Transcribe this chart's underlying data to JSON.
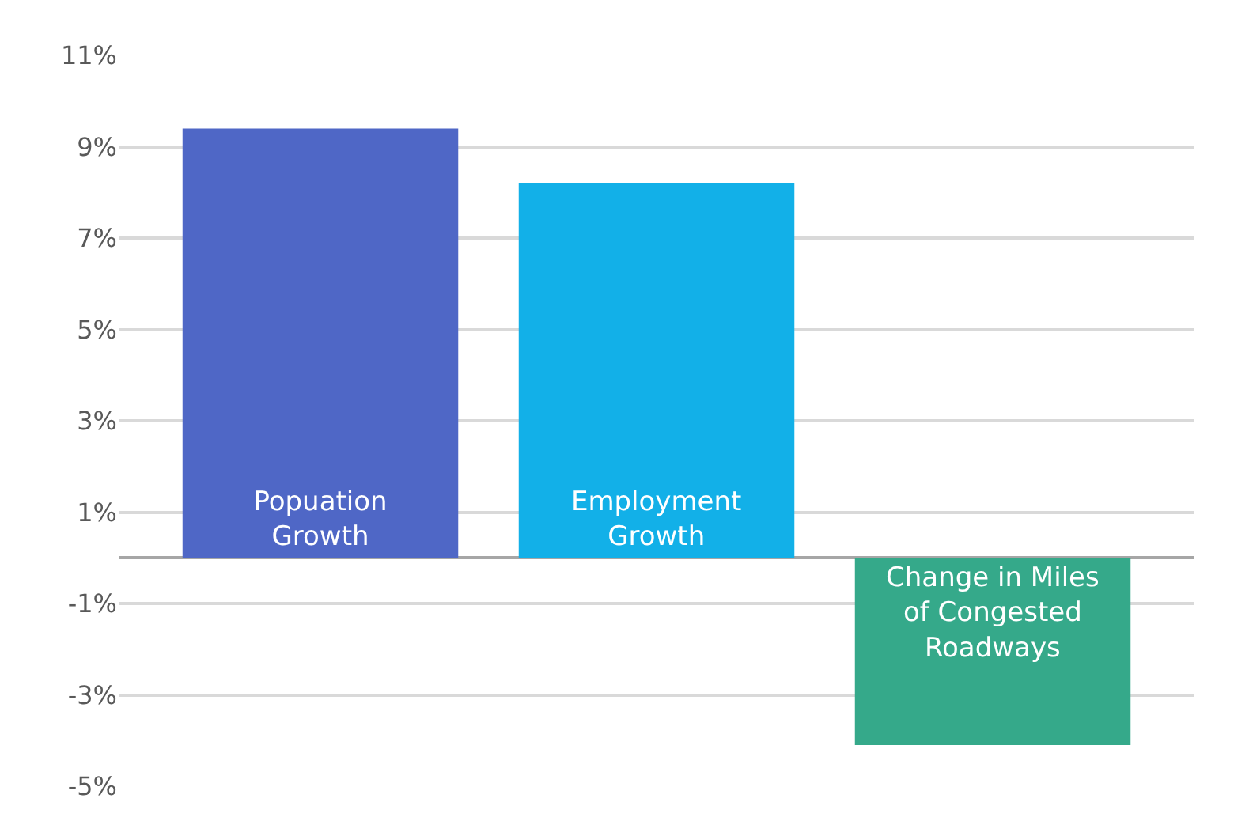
{
  "chart_data": {
    "type": "bar",
    "categories": [
      "Popuation Growth",
      "Employment Growth",
      "Change in Miles of Congested Roadways"
    ],
    "values": [
      9.4,
      8.2,
      -4.1
    ],
    "colors": [
      "#4f67c6",
      "#12b0e8",
      "#35a98a"
    ],
    "ylim": [
      -5,
      11
    ],
    "yticks": [
      {
        "value": -5,
        "label": "-5%"
      },
      {
        "value": -3,
        "label": "-3%"
      },
      {
        "value": -1,
        "label": "-1%"
      },
      {
        "value": 1,
        "label": "1%"
      },
      {
        "value": 3,
        "label": "3%"
      },
      {
        "value": 5,
        "label": "5%"
      },
      {
        "value": 7,
        "label": "7%"
      },
      {
        "value": 9,
        "label": "9%"
      },
      {
        "value": 11,
        "label": "11%"
      }
    ],
    "grid": "y",
    "tick_labels": "y"
  }
}
